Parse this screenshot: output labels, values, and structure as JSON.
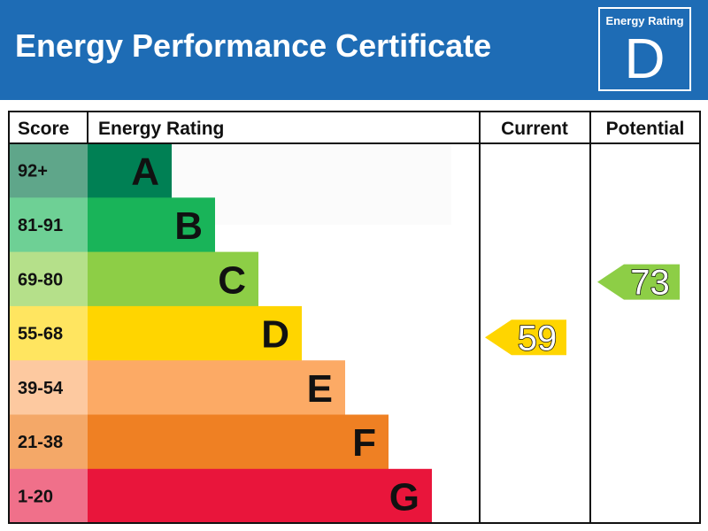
{
  "header": {
    "title": "Energy Performance Certificate",
    "badge_caption": "Energy Rating",
    "badge_letter": "D"
  },
  "chart_data": {
    "type": "table",
    "columns": [
      "Score",
      "Energy Rating",
      "Current",
      "Potential"
    ],
    "bands": [
      {
        "score": "92+",
        "letter": "A",
        "color": "#008054"
      },
      {
        "score": "81-91",
        "letter": "B",
        "color": "#19b459"
      },
      {
        "score": "69-80",
        "letter": "C",
        "color": "#8dce46"
      },
      {
        "score": "55-68",
        "letter": "D",
        "color": "#ffd500"
      },
      {
        "score": "39-54",
        "letter": "E",
        "color": "#fcaa65"
      },
      {
        "score": "21-38",
        "letter": "F",
        "color": "#ef8023"
      },
      {
        "score": "1-20",
        "letter": "G",
        "color": "#e9153b"
      }
    ],
    "current": {
      "value": 59,
      "band": "D",
      "color": "#ffd500"
    },
    "potential": {
      "value": 73,
      "band": "C",
      "color": "#8dce46"
    }
  }
}
